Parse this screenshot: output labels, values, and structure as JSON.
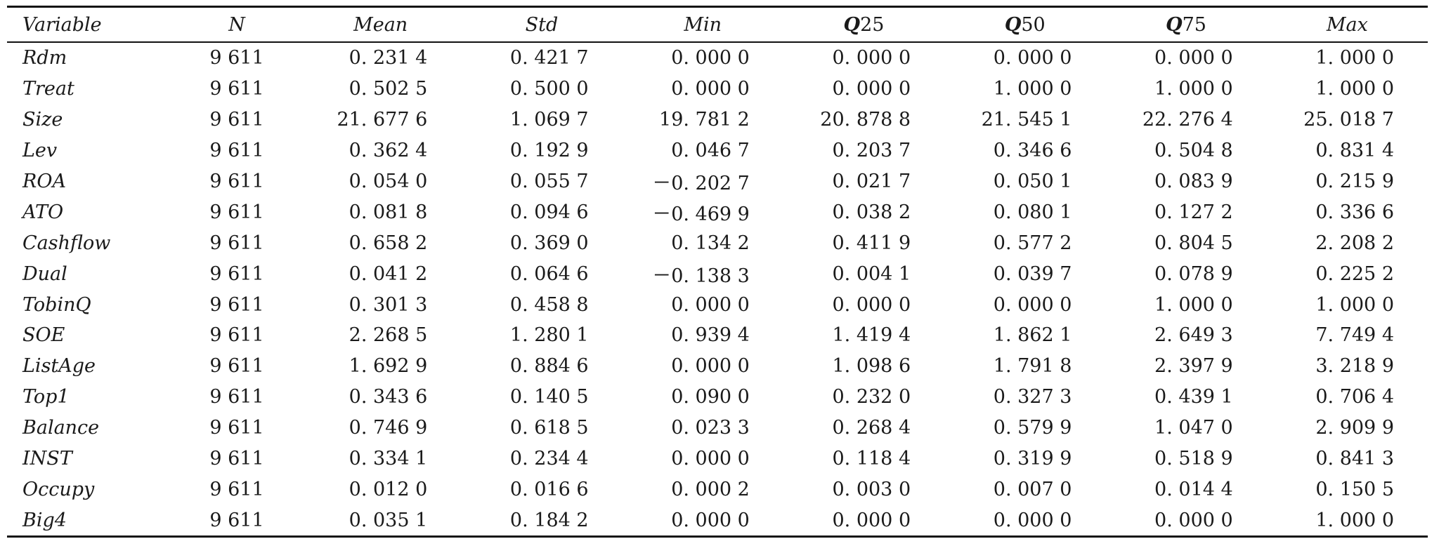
{
  "table": {
    "headers": [
      "Variable",
      "N",
      "Mean",
      "Std",
      "Min",
      "Q25",
      "Q50",
      "Q75",
      "Max"
    ],
    "rows": [
      [
        "Rdm",
        "9 611",
        "0. 231 4",
        "0. 421 7",
        "0. 000 0",
        "0. 000 0",
        "0. 000 0",
        "0. 000 0",
        "1. 000 0"
      ],
      [
        "Treat",
        "9 611",
        "0. 502 5",
        "0. 500 0",
        "0. 000 0",
        "0. 000 0",
        "1. 000 0",
        "1. 000 0",
        "1. 000 0"
      ],
      [
        "Size",
        "9 611",
        "21. 677 6",
        "1. 069 7",
        "19. 781 2",
        "20. 878 8",
        "21. 545 1",
        "22. 276 4",
        "25. 018 7"
      ],
      [
        "Lev",
        "9 611",
        "0. 362 4",
        "0. 192 9",
        "0. 046 7",
        "0. 203 7",
        "0. 346 6",
        "0. 504 8",
        "0. 831 4"
      ],
      [
        "ROA",
        "9 611",
        "0. 054 0",
        "0. 055 7",
        "－0. 202 7",
        "0. 021 7",
        "0. 050 1",
        "0. 083 9",
        "0. 215 9"
      ],
      [
        "ATO",
        "9 611",
        "0. 081 8",
        "0. 094 6",
        "－0. 469 9",
        "0. 038 2",
        "0. 080 1",
        "0. 127 2",
        "0. 336 6"
      ],
      [
        "Cashflow",
        "9 611",
        "0. 658 2",
        "0. 369 0",
        "0. 134 2",
        "0. 411 9",
        "0. 577 2",
        "0. 804 5",
        "2. 208 2"
      ],
      [
        "Dual",
        "9 611",
        "0. 041 2",
        "0. 064 6",
        "－0. 138 3",
        "0. 004 1",
        "0. 039 7",
        "0. 078 9",
        "0. 225 2"
      ],
      [
        "TobinQ",
        "9 611",
        "0. 301 3",
        "0. 458 8",
        "0. 000 0",
        "0. 000 0",
        "0. 000 0",
        "1. 000 0",
        "1. 000 0"
      ],
      [
        "SOE",
        "9 611",
        "2. 268 5",
        "1. 280 1",
        "0. 939 4",
        "1. 419 4",
        "1. 862 1",
        "2. 649 3",
        "7. 749 4"
      ],
      [
        "ListAge",
        "9 611",
        "1. 692 9",
        "0. 884 6",
        "0. 000 0",
        "1. 098 6",
        "1. 791 8",
        "2. 397 9",
        "3. 218 9"
      ],
      [
        "Top1",
        "9 611",
        "0. 343 6",
        "0. 140 5",
        "0. 090 0",
        "0. 232 0",
        "0. 327 3",
        "0. 439 1",
        "0. 706 4"
      ],
      [
        "Balance",
        "9 611",
        "0. 746 9",
        "0. 618 5",
        "0. 023 3",
        "0. 268 4",
        "0. 579 9",
        "1. 047 0",
        "2. 909 9"
      ],
      [
        "INST",
        "9 611",
        "0. 334 1",
        "0. 234 4",
        "0. 000 0",
        "0. 118 4",
        "0. 319 9",
        "0. 518 9",
        "0. 841 3"
      ],
      [
        "Occupy",
        "9 611",
        "0. 012 0",
        "0. 016 6",
        "0. 000 2",
        "0. 003 0",
        "0. 007 0",
        "0. 014 4",
        "0. 150 5"
      ],
      [
        "Big4",
        "9 611",
        "0. 035 1",
        "0. 184 2",
        "0. 000 0",
        "0. 000 0",
        "0. 000 0",
        "0. 000 0",
        "1. 000 0"
      ]
    ]
  }
}
